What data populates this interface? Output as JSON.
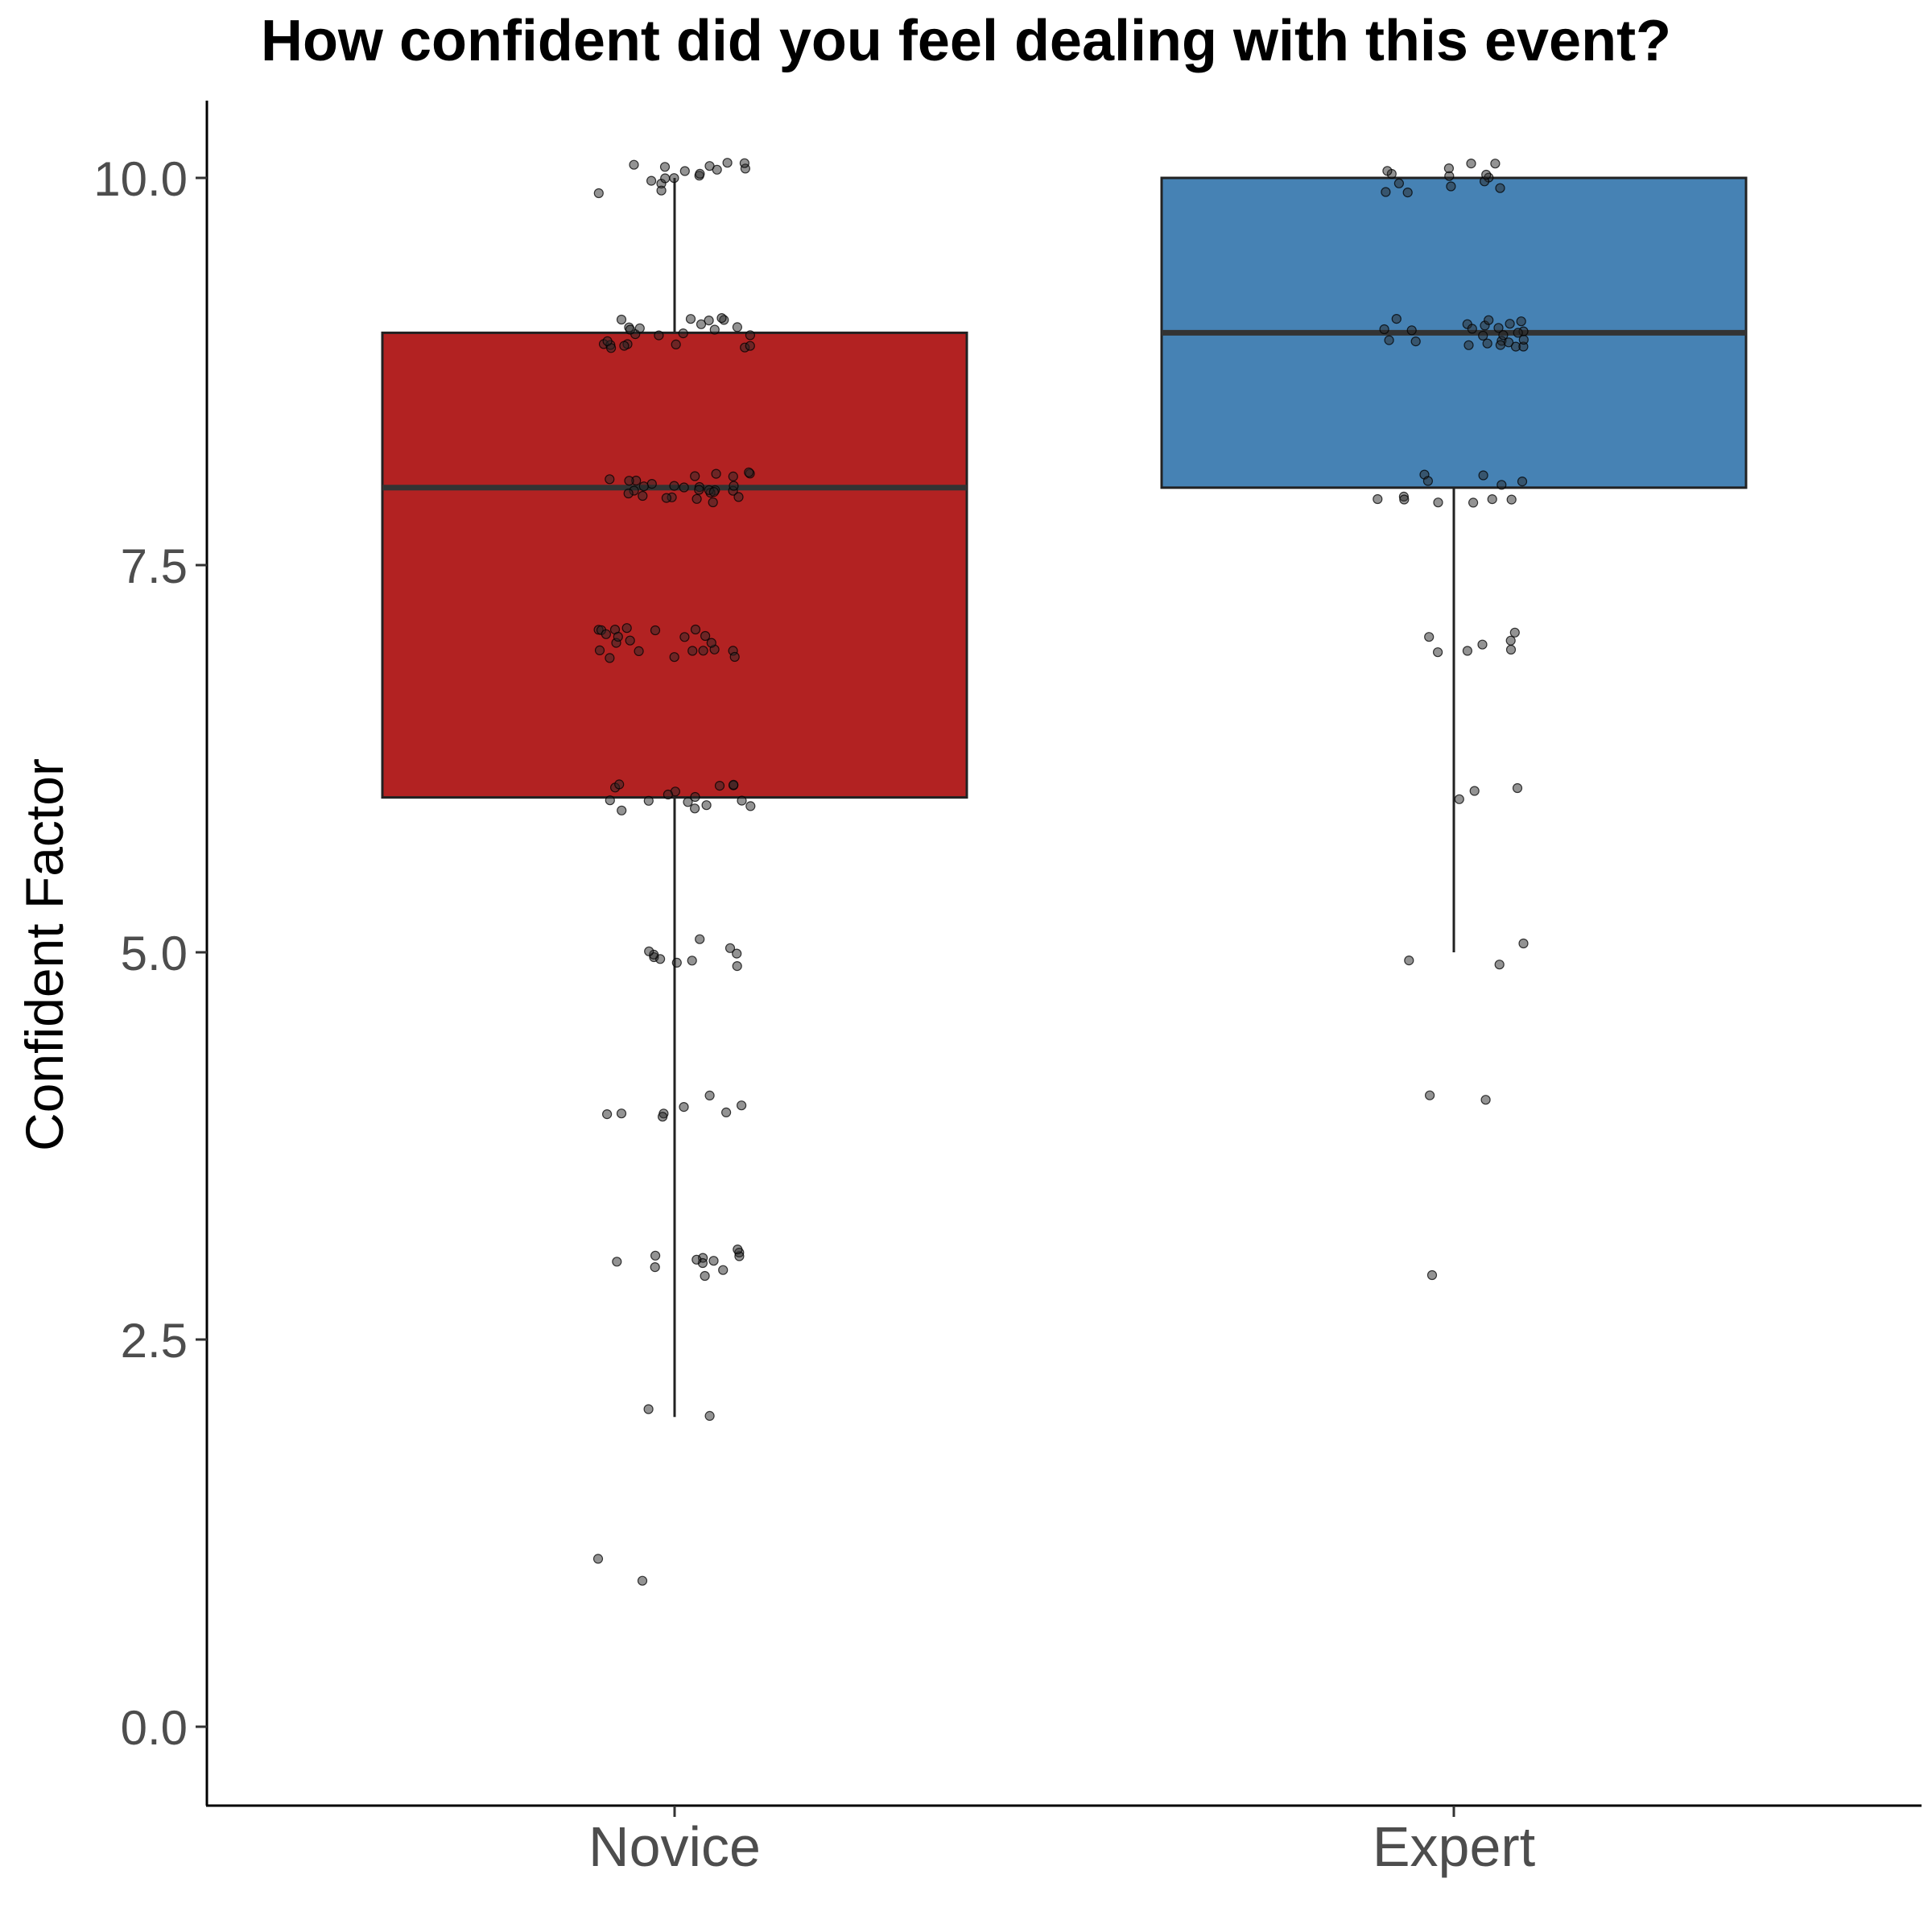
{
  "chart_data": {
    "type": "boxplot",
    "title": "How confident did you feel dealing with this event?",
    "xlabel": "",
    "ylabel": "Confident Factor",
    "ylim": [
      -0.5,
      10.5
    ],
    "y_ticks": [
      0.0,
      2.5,
      5.0,
      7.5,
      10.0
    ],
    "y_tick_labels": [
      "0.0",
      "2.5",
      "5.0",
      "7.5",
      "10.0"
    ],
    "categories": [
      "Novice",
      "Expert"
    ],
    "grid": false,
    "legend": "none",
    "series": [
      {
        "category": "Novice",
        "color": "#b22222",
        "whisker_low": 2,
        "q1": 6,
        "median": 8,
        "q3": 9,
        "whisker_high": 10,
        "points": {
          "10": 16,
          "9": 24,
          "8": 28,
          "7": 22,
          "6": 16,
          "5": 10,
          "4": 8,
          "3": 12,
          "2": 2,
          "1": 2
        }
      },
      {
        "category": "Expert",
        "color": "#4682b4",
        "whisker_low": 5,
        "q1": 8,
        "median": 9,
        "q3": 10,
        "whisker_high": 10,
        "points": {
          "10": 14,
          "9": 24,
          "8": 12,
          "7": 7,
          "6": 3,
          "5": 3,
          "4": 2,
          "3": 1
        }
      }
    ]
  }
}
